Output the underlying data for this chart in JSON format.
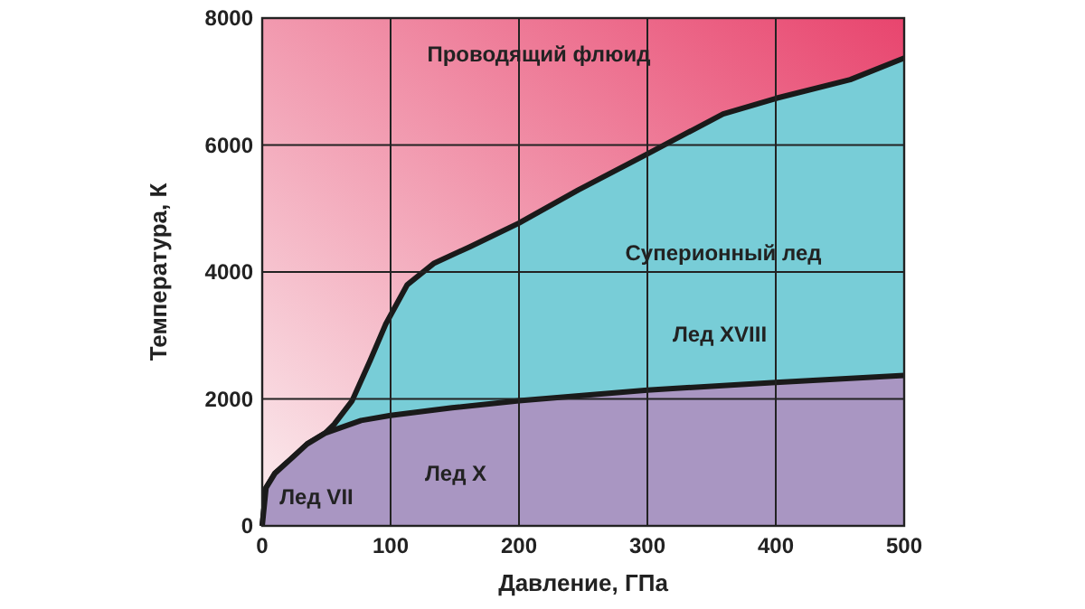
{
  "chart_data": {
    "type": "area",
    "xlabel": "Давление, ГПа",
    "ylabel": "Температура, К",
    "xlim": [
      0,
      500
    ],
    "ylim": [
      0,
      8000
    ],
    "xticks": [
      0,
      100,
      200,
      300,
      400,
      500
    ],
    "yticks": [
      0,
      2000,
      4000,
      6000,
      8000
    ],
    "grid": true,
    "series": [
      {
        "color": "#78cdd7",
        "x": [
          0,
          3,
          10,
          21,
          35,
          49,
          56,
          70,
          84,
          96,
          113,
          134,
          162,
          200,
          246,
          300,
          359,
          401,
          458,
          500
        ],
        "values": [
          0,
          600,
          830,
          1030,
          1290,
          1460,
          1600,
          1970,
          2600,
          3170,
          3800,
          4140,
          4400,
          4770,
          5290,
          5860,
          6490,
          6740,
          7030,
          7370
        ]
      },
      {
        "color": "#a996c2",
        "x": [
          0,
          3,
          10,
          21,
          35,
          49,
          77,
          100,
          148,
          200,
          300,
          400,
          500
        ],
        "values": [
          0,
          600,
          830,
          1030,
          1290,
          1460,
          1660,
          1740,
          1860,
          1970,
          2140,
          2260,
          2370
        ]
      }
    ],
    "annotations": [
      "Проводящий флюид",
      "Суперионный лед",
      "Лед XVIII",
      "Лед X",
      "Лед VII"
    ]
  }
}
